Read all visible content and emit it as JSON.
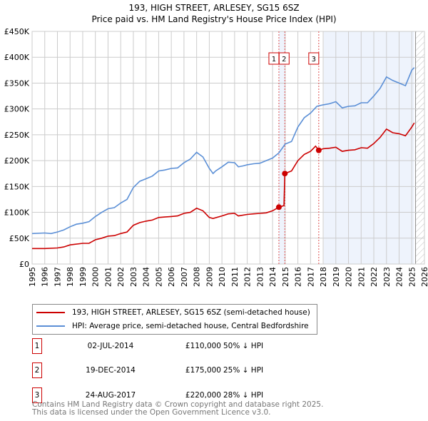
{
  "header": {
    "title": "193, HIGH STREET, ARLESEY, SG15 6SZ",
    "subtitle": "Price paid vs. HM Land Registry's House Price Index (HPI)"
  },
  "chart_data": {
    "type": "line",
    "title": "193, HIGH STREET, ARLESEY, SG15 6SZ",
    "subtitle": "Price paid vs. HM Land Registry's House Price Index (HPI)",
    "xlim": [
      1995,
      2026
    ],
    "ylim": [
      0,
      450000
    ],
    "x_ticks": [
      "1995",
      "1996",
      "1997",
      "1998",
      "1999",
      "2000",
      "2001",
      "2002",
      "2003",
      "2004",
      "2005",
      "2006",
      "2007",
      "2008",
      "2009",
      "2010",
      "2011",
      "2012",
      "2013",
      "2014",
      "2015",
      "2016",
      "2017",
      "2018",
      "2019",
      "2020",
      "2021",
      "2022",
      "2023",
      "2024",
      "2025",
      "2026"
    ],
    "y_ticks": [
      {
        "v": 0,
        "label": "£0"
      },
      {
        "v": 50000,
        "label": "£50K"
      },
      {
        "v": 100000,
        "label": "£100K"
      },
      {
        "v": 150000,
        "label": "£150K"
      },
      {
        "v": 200000,
        "label": "£200K"
      },
      {
        "v": 250000,
        "label": "£250K"
      },
      {
        "v": 300000,
        "label": "£300K"
      },
      {
        "v": 350000,
        "label": "£350K"
      },
      {
        "v": 400000,
        "label": "£400K"
      },
      {
        "v": 450000,
        "label": "£450K"
      }
    ],
    "grid": true,
    "shaded_ranges": [
      [
        2014.5,
        2014.97
      ],
      [
        2018.05,
        2025.2
      ]
    ],
    "forecast_from": 2025.3,
    "series": [
      {
        "name": "193, HIGH STREET, ARLESEY, SG15 6SZ (semi-detached house)",
        "color": "#cc0000",
        "x": [
          1995,
          1996,
          1997,
          1997.5,
          1998,
          1999,
          1999.5,
          2000,
          2000.5,
          2001,
          2001.5,
          2002,
          2002.5,
          2003,
          2003.5,
          2004,
          2004.5,
          2005,
          2005.5,
          2006,
          2006.5,
          2007,
          2007.5,
          2008,
          2008.5,
          2009,
          2009.3,
          2010,
          2010.5,
          2011,
          2011.3,
          2012,
          2012.5,
          2013,
          2013.5,
          2014,
          2014.5,
          2014.9,
          2014.97,
          2015.5,
          2016,
          2016.5,
          2017,
          2017.4,
          2017.65,
          2018,
          2018.5,
          2019,
          2019.5,
          2020,
          2020.5,
          2021,
          2021.5,
          2022,
          2022.5,
          2023,
          2023.5,
          2024,
          2024.5,
          2025,
          2025.2
        ],
        "y": [
          30000,
          30000,
          31000,
          33000,
          37000,
          40000,
          40000,
          47000,
          50000,
          54000,
          55000,
          59000,
          62000,
          75000,
          80000,
          83000,
          85000,
          90000,
          91000,
          92000,
          93000,
          98000,
          100000,
          108000,
          103000,
          90000,
          88000,
          93000,
          97000,
          98000,
          93000,
          96000,
          97000,
          98000,
          99000,
          103000,
          110000,
          113000,
          175000,
          180000,
          200000,
          212000,
          218000,
          228000,
          220000,
          223000,
          224000,
          226000,
          218000,
          220000,
          221000,
          225000,
          224000,
          233000,
          245000,
          261000,
          254000,
          252000,
          248000,
          265000,
          273000
        ]
      },
      {
        "name": "HPI: Average price, semi-detached house, Central Bedfordshire",
        "color": "#5b8fd6",
        "x": [
          1995,
          1996,
          1996.5,
          1997,
          1997.5,
          1998,
          1998.5,
          1999,
          1999.5,
          2000,
          2000.5,
          2001,
          2001.5,
          2002,
          2002.5,
          2003,
          2003.5,
          2004,
          2004.5,
          2005,
          2005.5,
          2006,
          2006.5,
          2007,
          2007.5,
          2008,
          2008.5,
          2009,
          2009.3,
          2009.5,
          2010,
          2010.5,
          2011,
          2011.3,
          2011.7,
          2012,
          2012.5,
          2013,
          2013.5,
          2014,
          2014.5,
          2015,
          2015.5,
          2016,
          2016.5,
          2017,
          2017.5,
          2018,
          2018.5,
          2019,
          2019.5,
          2020,
          2020.5,
          2021,
          2021.5,
          2022,
          2022.5,
          2023,
          2023.5,
          2024,
          2024.5,
          2025,
          2025.2
        ],
        "y": [
          59000,
          60000,
          59000,
          62000,
          66000,
          72000,
          77000,
          79000,
          82000,
          92000,
          100000,
          107000,
          109000,
          118000,
          125000,
          148000,
          160000,
          165000,
          170000,
          180000,
          182000,
          185000,
          186000,
          196000,
          203000,
          216000,
          207000,
          185000,
          175000,
          180000,
          188000,
          197000,
          196000,
          188000,
          190000,
          192000,
          194000,
          195000,
          200000,
          205000,
          215000,
          232000,
          237000,
          265000,
          283000,
          292000,
          305000,
          308000,
          310000,
          314000,
          302000,
          305000,
          306000,
          312000,
          312000,
          325000,
          340000,
          362000,
          355000,
          350000,
          345000,
          375000,
          380000
        ]
      }
    ],
    "sales": [
      {
        "id": "1",
        "x": 2014.5,
        "y": 110000,
        "date": "02-JUL-2014",
        "price": "£110,000",
        "hpi": "50% ↓ HPI"
      },
      {
        "id": "2",
        "x": 2014.97,
        "y": 175000,
        "date": "19-DEC-2014",
        "price": "£175,000",
        "hpi": "25% ↓ HPI"
      },
      {
        "id": "3",
        "x": 2017.65,
        "y": 220000,
        "date": "24-AUG-2017",
        "price": "£220,000",
        "hpi": "28% ↓ HPI"
      }
    ]
  },
  "legend": {
    "red": "193, HIGH STREET, ARLESEY, SG15 6SZ (semi-detached house)",
    "blue": "HPI: Average price, semi-detached house, Central Bedfordshire"
  },
  "footer": {
    "line1": "Contains HM Land Registry data © Crown copyright and database right 2025.",
    "line2": "This data is licensed under the Open Government Licence v3.0."
  }
}
